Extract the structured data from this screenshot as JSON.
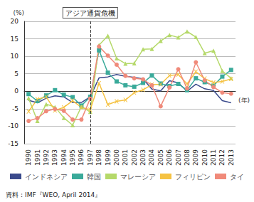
{
  "chart_data": {
    "type": "line",
    "y_label": "(%)",
    "x_label": "(年)",
    "source": "資料：IMF『WEO, April 2014』",
    "annotations": [
      {
        "text": "アジア通貨危機",
        "x": "1997",
        "line_style": "dashed"
      }
    ],
    "categories": [
      "1990",
      "1991",
      "1992",
      "1993",
      "1994",
      "1995",
      "1996",
      "1997",
      "1998",
      "1999",
      "2000",
      "2001",
      "2002",
      "2003",
      "2004",
      "2005",
      "2006",
      "2007",
      "2008",
      "2009",
      "2010",
      "2011",
      "2012",
      "2013"
    ],
    "ylim": [
      -15,
      20
    ],
    "yticks": [
      -15,
      -10,
      -5,
      0,
      5,
      10,
      15,
      20
    ],
    "grid": true,
    "legend": "bottom",
    "series": [
      {
        "name": "インドネシア",
        "color": "#3a4a8c",
        "marker": "none",
        "values": [
          -2.6,
          -3.3,
          -2.0,
          -1.3,
          -1.6,
          -3.2,
          -3.2,
          -1.6,
          3.8,
          4.1,
          4.8,
          4.3,
          4.0,
          3.5,
          0.6,
          0.1,
          3.0,
          2.4,
          0.0,
          2.0,
          0.7,
          0.2,
          -2.7,
          -3.3
        ]
      },
      {
        "name": "韓国",
        "color": "#3aaa9a",
        "marker": "square",
        "values": [
          -0.8,
          -2.8,
          -1.2,
          0.3,
          -1.0,
          -1.7,
          -4.1,
          -1.6,
          11.7,
          5.3,
          2.8,
          1.7,
          1.3,
          2.4,
          4.5,
          2.2,
          1.5,
          2.1,
          0.3,
          3.7,
          2.6,
          1.6,
          4.2,
          6.1
        ]
      },
      {
        "name": "マレーシア",
        "color": "#b5d96a",
        "marker": "triangle",
        "values": [
          -2.0,
          -8.5,
          -3.7,
          -4.5,
          -7.6,
          -9.7,
          -4.4,
          -5.9,
          13.2,
          15.9,
          9.4,
          7.9,
          8.0,
          12.0,
          12.1,
          14.4,
          16.1,
          15.4,
          17.1,
          15.5,
          10.9,
          11.6,
          5.8,
          3.7
        ]
      },
      {
        "name": "フィリピン",
        "color": "#f5c242",
        "marker": "x",
        "values": [
          -5.8,
          -2.3,
          -1.6,
          -5.5,
          -4.6,
          -2.7,
          -4.6,
          -5.3,
          2.3,
          -3.8,
          -2.9,
          -2.5,
          -0.4,
          0.4,
          1.9,
          2.0,
          4.5,
          4.8,
          2.1,
          5.6,
          3.6,
          2.5,
          2.8,
          3.5
        ]
      },
      {
        "name": "タイ",
        "color": "#f08a7a",
        "marker": "circle",
        "values": [
          -8.5,
          -7.7,
          -5.7,
          -5.1,
          -5.6,
          -8.1,
          -8.1,
          -2.1,
          12.8,
          10.2,
          7.6,
          4.4,
          3.7,
          3.4,
          1.7,
          -4.3,
          1.1,
          6.3,
          0.8,
          8.3,
          3.1,
          1.2,
          -0.4,
          -0.7
        ]
      }
    ]
  }
}
